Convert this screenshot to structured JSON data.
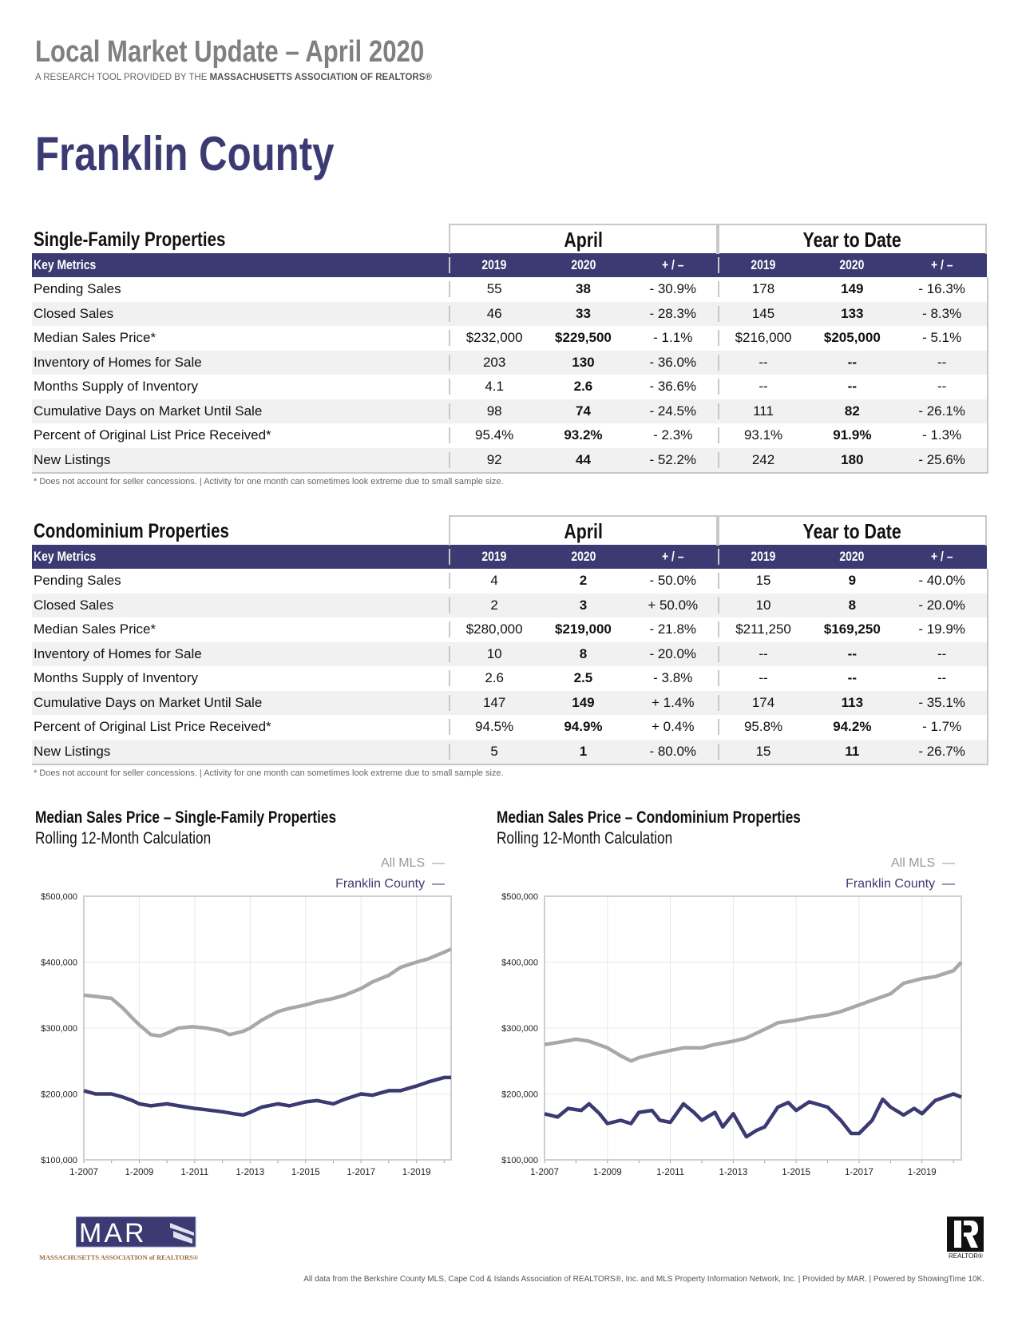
{
  "header": {
    "title": "Local Market Update – April 2020",
    "subtitle_prefix": "A RESEARCH TOOL PROVIDED BY THE",
    "subtitle_org": "MASSACHUSETTS ASSOCIATION OF REALTORS®",
    "county": "Franklin County"
  },
  "colors": {
    "brand": "#3b3a72",
    "all_mls": "#a8a8a8",
    "title_gray": "#808080"
  },
  "tables": [
    {
      "section": "Single-Family Properties",
      "group1": "April",
      "group2": "Year to Date",
      "columns": [
        "Key Metrics",
        "2019",
        "2020",
        "+ / –",
        "2019",
        "2020",
        "+ / –"
      ],
      "rows": [
        [
          "Pending Sales",
          "55",
          "38",
          "- 30.9%",
          "178",
          "149",
          "- 16.3%"
        ],
        [
          "Closed Sales",
          "46",
          "33",
          "- 28.3%",
          "145",
          "133",
          "- 8.3%"
        ],
        [
          "Median Sales Price*",
          "$232,000",
          "$229,500",
          "- 1.1%",
          "$216,000",
          "$205,000",
          "- 5.1%"
        ],
        [
          "Inventory of Homes for Sale",
          "203",
          "130",
          "- 36.0%",
          "--",
          "--",
          "--"
        ],
        [
          "Months Supply of Inventory",
          "4.1",
          "2.6",
          "- 36.6%",
          "--",
          "--",
          "--"
        ],
        [
          "Cumulative Days on Market Until Sale",
          "98",
          "74",
          "- 24.5%",
          "111",
          "82",
          "- 26.1%"
        ],
        [
          "Percent of Original List Price Received*",
          "95.4%",
          "93.2%",
          "- 2.3%",
          "93.1%",
          "91.9%",
          "- 1.3%"
        ],
        [
          "New Listings",
          "92",
          "44",
          "- 52.2%",
          "242",
          "180",
          "- 25.6%"
        ]
      ],
      "footnote": "* Does not account for seller concessions.  |  Activity for one month can sometimes look extreme due to small sample size."
    },
    {
      "section": "Condominium Properties",
      "group1": "April",
      "group2": "Year to Date",
      "columns": [
        "Key Metrics",
        "2019",
        "2020",
        "+ / –",
        "2019",
        "2020",
        "+ / –"
      ],
      "rows": [
        [
          "Pending Sales",
          "4",
          "2",
          "- 50.0%",
          "15",
          "9",
          "- 40.0%"
        ],
        [
          "Closed Sales",
          "2",
          "3",
          "+ 50.0%",
          "10",
          "8",
          "- 20.0%"
        ],
        [
          "Median Sales Price*",
          "$280,000",
          "$219,000",
          "- 21.8%",
          "$211,250",
          "$169,250",
          "- 19.9%"
        ],
        [
          "Inventory of Homes for Sale",
          "10",
          "8",
          "- 20.0%",
          "--",
          "--",
          "--"
        ],
        [
          "Months Supply of Inventory",
          "2.6",
          "2.5",
          "- 3.8%",
          "--",
          "--",
          "--"
        ],
        [
          "Cumulative Days on Market Until Sale",
          "147",
          "149",
          "+ 1.4%",
          "174",
          "113",
          "- 35.1%"
        ],
        [
          "Percent of Original List Price Received*",
          "94.5%",
          "94.9%",
          "+ 0.4%",
          "95.8%",
          "94.2%",
          "- 1.7%"
        ],
        [
          "New Listings",
          "5",
          "1",
          "- 80.0%",
          "15",
          "11",
          "- 26.7%"
        ]
      ],
      "footnote": "* Does not account for seller concessions.  |  Activity for one month can sometimes look extreme due to small sample size."
    }
  ],
  "chart_data": [
    {
      "type": "line",
      "title": "Median Sales Price – Single-Family Properties",
      "subtitle": "Rolling 12-Month Calculation",
      "xlim": [
        "2007-01",
        "2020-04"
      ],
      "ylim": [
        100000,
        500000
      ],
      "yticks": [
        "$100,000",
        "$200,000",
        "$300,000",
        "$400,000",
        "$500,000"
      ],
      "ytick_values": [
        100000,
        200000,
        300000,
        400000,
        500000
      ],
      "xticks": [
        "1-2007",
        "1-2009",
        "1-2011",
        "1-2013",
        "1-2015",
        "1-2017",
        "1-2019"
      ],
      "grid": true,
      "legend": "top-right",
      "series": [
        {
          "name": "All MLS",
          "color": "#a8a8a8",
          "points": [
            [
              "2007-01",
              350000
            ],
            [
              "2007-06",
              348000
            ],
            [
              "2008-01",
              345000
            ],
            [
              "2008-06",
              330000
            ],
            [
              "2008-10",
              315000
            ],
            [
              "2009-01",
              305000
            ],
            [
              "2009-06",
              290000
            ],
            [
              "2009-10",
              288000
            ],
            [
              "2010-01",
              292000
            ],
            [
              "2010-06",
              300000
            ],
            [
              "2010-12",
              302000
            ],
            [
              "2011-06",
              300000
            ],
            [
              "2012-01",
              295000
            ],
            [
              "2012-04",
              290000
            ],
            [
              "2012-10",
              295000
            ],
            [
              "2013-01",
              300000
            ],
            [
              "2013-06",
              312000
            ],
            [
              "2014-01",
              325000
            ],
            [
              "2014-06",
              330000
            ],
            [
              "2015-01",
              335000
            ],
            [
              "2015-06",
              340000
            ],
            [
              "2016-01",
              345000
            ],
            [
              "2016-06",
              350000
            ],
            [
              "2017-01",
              360000
            ],
            [
              "2017-06",
              370000
            ],
            [
              "2018-01",
              380000
            ],
            [
              "2018-06",
              392000
            ],
            [
              "2019-01",
              400000
            ],
            [
              "2019-06",
              405000
            ],
            [
              "2020-01",
              415000
            ],
            [
              "2020-04",
              420000
            ]
          ]
        },
        {
          "name": "Franklin County",
          "color": "#3b3a72",
          "points": [
            [
              "2007-01",
              205000
            ],
            [
              "2007-06",
              200000
            ],
            [
              "2008-01",
              200000
            ],
            [
              "2008-06",
              195000
            ],
            [
              "2008-10",
              190000
            ],
            [
              "2009-01",
              185000
            ],
            [
              "2009-06",
              182000
            ],
            [
              "2010-01",
              185000
            ],
            [
              "2010-06",
              182000
            ],
            [
              "2011-01",
              178000
            ],
            [
              "2011-06",
              176000
            ],
            [
              "2012-01",
              173000
            ],
            [
              "2012-06",
              170000
            ],
            [
              "2012-10",
              168000
            ],
            [
              "2013-01",
              172000
            ],
            [
              "2013-06",
              180000
            ],
            [
              "2014-01",
              185000
            ],
            [
              "2014-06",
              182000
            ],
            [
              "2015-01",
              188000
            ],
            [
              "2015-06",
              190000
            ],
            [
              "2016-01",
              185000
            ],
            [
              "2016-06",
              192000
            ],
            [
              "2017-01",
              200000
            ],
            [
              "2017-06",
              198000
            ],
            [
              "2018-01",
              205000
            ],
            [
              "2018-06",
              205000
            ],
            [
              "2019-01",
              212000
            ],
            [
              "2019-06",
              218000
            ],
            [
              "2020-01",
              225000
            ],
            [
              "2020-04",
              225000
            ]
          ]
        }
      ]
    },
    {
      "type": "line",
      "title": "Median Sales Price – Condominium Properties",
      "subtitle": "Rolling 12-Month Calculation",
      "xlim": [
        "2007-01",
        "2020-04"
      ],
      "ylim": [
        100000,
        500000
      ],
      "yticks": [
        "$100,000",
        "$200,000",
        "$300,000",
        "$400,000",
        "$500,000"
      ],
      "ytick_values": [
        100000,
        200000,
        300000,
        400000,
        500000
      ],
      "xticks": [
        "1-2007",
        "1-2009",
        "1-2011",
        "1-2013",
        "1-2015",
        "1-2017",
        "1-2019"
      ],
      "grid": true,
      "legend": "top-right",
      "series": [
        {
          "name": "All MLS",
          "color": "#a8a8a8",
          "points": [
            [
              "2007-01",
              275000
            ],
            [
              "2007-06",
              278000
            ],
            [
              "2008-01",
              283000
            ],
            [
              "2008-06",
              280000
            ],
            [
              "2009-01",
              270000
            ],
            [
              "2009-06",
              258000
            ],
            [
              "2009-10",
              250000
            ],
            [
              "2010-01",
              255000
            ],
            [
              "2010-06",
              260000
            ],
            [
              "2011-01",
              266000
            ],
            [
              "2011-06",
              270000
            ],
            [
              "2012-01",
              270000
            ],
            [
              "2012-06",
              275000
            ],
            [
              "2013-01",
              280000
            ],
            [
              "2013-06",
              285000
            ],
            [
              "2014-01",
              298000
            ],
            [
              "2014-06",
              308000
            ],
            [
              "2015-01",
              312000
            ],
            [
              "2015-06",
              316000
            ],
            [
              "2016-01",
              320000
            ],
            [
              "2016-06",
              325000
            ],
            [
              "2017-01",
              335000
            ],
            [
              "2017-06",
              342000
            ],
            [
              "2018-01",
              352000
            ],
            [
              "2018-06",
              368000
            ],
            [
              "2019-01",
              375000
            ],
            [
              "2019-06",
              378000
            ],
            [
              "2020-01",
              387000
            ],
            [
              "2020-04",
              400000
            ]
          ]
        },
        {
          "name": "Franklin County",
          "color": "#3b3a72",
          "points": [
            [
              "2007-01",
              170000
            ],
            [
              "2007-06",
              165000
            ],
            [
              "2007-10",
              178000
            ],
            [
              "2008-03",
              175000
            ],
            [
              "2008-06",
              185000
            ],
            [
              "2008-10",
              170000
            ],
            [
              "2009-01",
              155000
            ],
            [
              "2009-06",
              160000
            ],
            [
              "2009-10",
              155000
            ],
            [
              "2010-01",
              172000
            ],
            [
              "2010-06",
              175000
            ],
            [
              "2010-09",
              160000
            ],
            [
              "2011-01",
              157000
            ],
            [
              "2011-06",
              185000
            ],
            [
              "2011-10",
              172000
            ],
            [
              "2012-01",
              160000
            ],
            [
              "2012-06",
              172000
            ],
            [
              "2012-09",
              150000
            ],
            [
              "2013-01",
              170000
            ],
            [
              "2013-06",
              135000
            ],
            [
              "2013-10",
              145000
            ],
            [
              "2014-01",
              150000
            ],
            [
              "2014-06",
              180000
            ],
            [
              "2014-10",
              187000
            ],
            [
              "2015-01",
              175000
            ],
            [
              "2015-06",
              188000
            ],
            [
              "2016-01",
              180000
            ],
            [
              "2016-06",
              160000
            ],
            [
              "2016-10",
              140000
            ],
            [
              "2017-01",
              140000
            ],
            [
              "2017-06",
              160000
            ],
            [
              "2017-10",
              192000
            ],
            [
              "2018-01",
              180000
            ],
            [
              "2018-06",
              168000
            ],
            [
              "2018-10",
              178000
            ],
            [
              "2019-01",
              170000
            ],
            [
              "2019-06",
              190000
            ],
            [
              "2020-01",
              200000
            ],
            [
              "2020-04",
              195000
            ]
          ]
        }
      ]
    }
  ],
  "footer": {
    "mar_logo_text": "MAR",
    "mar_org": "MASSACHUSETTS ASSOCIATION of REALTORS®",
    "realtor_logo_text": "REALTOR®",
    "disclaimer": "All data from the Berkshire County MLS, Cape Cod & Islands Association of REALTORS®, Inc. and MLS Property Information Network, Inc. | Provided by MAR. | Powered by ShowingTime 10K."
  }
}
